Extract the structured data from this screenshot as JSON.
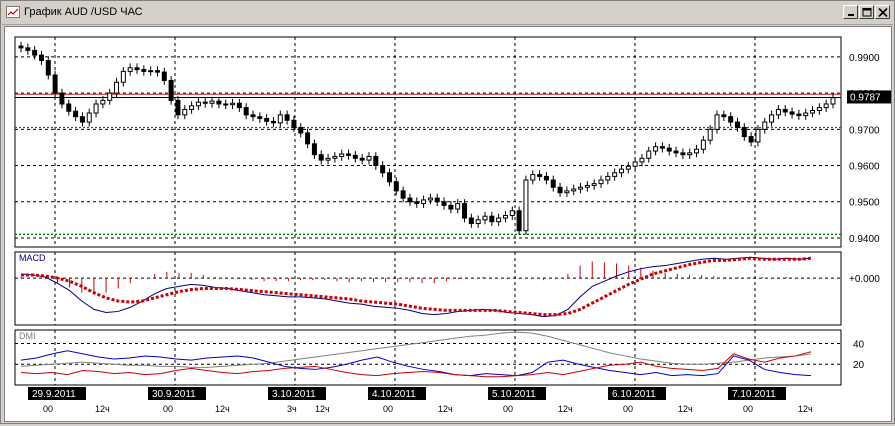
{
  "window": {
    "title": "График AUD /USD  ЧАС"
  },
  "colors": {
    "candle": "#000000",
    "resistance_line": "#c02020",
    "support_line": "#008000",
    "macd_line": "#00007f",
    "signal_line": "#cc0000",
    "histogram": "#cc0000",
    "dmi_adx": "#808080",
    "dmi_plus": "#0000cc",
    "dmi_minus": "#cc0000",
    "grid": "#000000"
  },
  "chart_data": [
    {
      "type": "candlestick",
      "panel": "price",
      "title": "",
      "price_axis": {
        "ticks": [
          "0.9900",
          "0.9800",
          "0.9700",
          "0.9600",
          "0.9500",
          "0.9400"
        ],
        "range": [
          0.9375,
          0.9955
        ]
      },
      "current_price": "0.9787",
      "levels": [
        {
          "value": 0.9797,
          "style": "solid",
          "color_key": "resistance_line"
        },
        {
          "value": 0.9788,
          "style": "solid",
          "color_key": "candle"
        },
        {
          "value": 0.9705,
          "style": "dotted",
          "color_key": "support_line"
        },
        {
          "value": 0.941,
          "style": "dotted",
          "color_key": "support_line"
        }
      ],
      "series": [
        {
          "close": [
            0.9925,
            0.9918,
            0.9905,
            0.989,
            0.985,
            0.98,
            0.977,
            0.975,
            0.9735,
            0.972,
            0.9745,
            0.977,
            0.978,
            0.98,
            0.983,
            0.986,
            0.987,
            0.9865,
            0.986,
            0.9862,
            0.9858,
            0.9835,
            0.978,
            0.974,
            0.9755,
            0.9765,
            0.9775,
            0.9772,
            0.9778,
            0.977,
            0.9768,
            0.9772,
            0.976,
            0.974,
            0.9735,
            0.973,
            0.9722,
            0.9718,
            0.974,
            0.9725,
            0.9705,
            0.969,
            0.966,
            0.963,
            0.9615,
            0.962,
            0.9625,
            0.9632,
            0.9628,
            0.962,
            0.9615,
            0.9625,
            0.96,
            0.958,
            0.9555,
            0.953,
            0.951,
            0.95,
            0.9495,
            0.9505,
            0.951,
            0.95,
            0.949,
            0.948,
            0.9495,
            0.9455,
            0.944,
            0.945,
            0.946,
            0.9445,
            0.9455,
            0.9462,
            0.9475,
            0.942,
            0.956,
            0.9575,
            0.957,
            0.956,
            0.954,
            0.9525,
            0.953,
            0.9535,
            0.954,
            0.9545,
            0.955,
            0.956,
            0.957,
            0.958,
            0.959,
            0.9598,
            0.961,
            0.962,
            0.964,
            0.9652,
            0.9648,
            0.964,
            0.9635,
            0.963,
            0.9635,
            0.9645,
            0.967,
            0.97,
            0.974,
            0.9735,
            0.972,
            0.9705,
            0.968,
            0.9665,
            0.97,
            0.972,
            0.974,
            0.9755,
            0.9748,
            0.9742,
            0.9738,
            0.9745,
            0.9752,
            0.976,
            0.977,
            0.9787
          ]
        }
      ],
      "x_labels": [
        {
          "date": "29.9.2011",
          "ticks": [
            "00",
            "12ч"
          ]
        },
        {
          "date": "30.9.2011",
          "ticks": [
            "00",
            "12ч"
          ]
        },
        {
          "date": "3.10.2011",
          "ticks": [
            "3ч",
            "12ч"
          ]
        },
        {
          "date": "4.10.2011",
          "ticks": [
            "00",
            "12ч"
          ]
        },
        {
          "date": "5.10.2011",
          "ticks": [
            "00",
            "12ч"
          ]
        },
        {
          "date": "6.10.2011",
          "ticks": [
            "00",
            "12ч"
          ]
        },
        {
          "date": "7.10.2011",
          "ticks": [
            "00",
            "12ч"
          ]
        }
      ],
      "grid": true
    },
    {
      "type": "line",
      "panel": "macd",
      "title": "MACD",
      "axis_label": "+0.000",
      "zero_level": 0,
      "range": [
        -0.0045,
        0.0025
      ],
      "series": [
        {
          "name": "macd",
          "values": [
            0.0004,
            0.0003,
            0.0001,
            -0.0005,
            -0.0012,
            -0.0022,
            -0.003,
            -0.0033,
            -0.0032,
            -0.0028,
            -0.0022,
            -0.0015,
            -0.001,
            -0.0008,
            -0.0006,
            -0.0007,
            -0.0009,
            -0.001,
            -0.0012,
            -0.0014,
            -0.0016,
            -0.0017,
            -0.0018,
            -0.0018,
            -0.0019,
            -0.002,
            -0.0022,
            -0.0024,
            -0.0025,
            -0.0027,
            -0.0028,
            -0.0029,
            -0.0031,
            -0.0034,
            -0.0035,
            -0.0034,
            -0.0032,
            -0.0031,
            -0.003,
            -0.0031,
            -0.0033,
            -0.0034,
            -0.0035,
            -0.0037,
            -0.0036,
            -0.003,
            -0.0018,
            -0.0008,
            -0.0003,
            0.0002,
            0.0006,
            0.0009,
            0.0011,
            0.0012,
            0.0014,
            0.0016,
            0.0018,
            0.0019,
            0.0018,
            0.0019,
            0.002,
            0.0019,
            0.0018,
            0.0019,
            0.0018,
            0.0019
          ]
        },
        {
          "name": "signal",
          "values": [
            0.0003,
            0.0003,
            0.0002,
            0.0,
            -0.0003,
            -0.0008,
            -0.0014,
            -0.0019,
            -0.0022,
            -0.0023,
            -0.0022,
            -0.0019,
            -0.0016,
            -0.0013,
            -0.0011,
            -0.001,
            -0.001,
            -0.001,
            -0.0011,
            -0.0012,
            -0.0013,
            -0.0014,
            -0.0015,
            -0.0016,
            -0.0017,
            -0.0018,
            -0.0019,
            -0.002,
            -0.0022,
            -0.0023,
            -0.0024,
            -0.0025,
            -0.0027,
            -0.0029,
            -0.003,
            -0.0031,
            -0.0031,
            -0.0031,
            -0.0031,
            -0.0031,
            -0.0032,
            -0.0033,
            -0.0034,
            -0.0035,
            -0.0035,
            -0.0034,
            -0.003,
            -0.0024,
            -0.0018,
            -0.0012,
            -0.0006,
            -0.0001,
            0.0004,
            0.0007,
            0.001,
            0.0013,
            0.0015,
            0.0017,
            0.0017,
            0.0018,
            0.0019,
            0.0018,
            0.0018,
            0.0018,
            0.0018,
            0.0019
          ]
        }
      ],
      "histogram": [
        0.0001,
        0.0,
        -0.0001,
        -0.0005,
        -0.0009,
        -0.0014,
        -0.0016,
        -0.0014,
        -0.001,
        -0.0005,
        0.0,
        0.0004,
        0.0006,
        0.0005,
        0.0005,
        0.0003,
        0.0001,
        0.0,
        -0.0001,
        -0.0002,
        -0.0003,
        -0.0003,
        -0.0003,
        -0.0002,
        -0.0002,
        -0.0002,
        -0.0003,
        -0.0004,
        -0.0003,
        -0.0004,
        -0.0004,
        -0.0004,
        -0.0004,
        -0.0005,
        -0.0005,
        -0.0003,
        -0.0001,
        0.0,
        0.0001,
        0.0,
        -0.0001,
        -0.0001,
        -0.0001,
        -0.0002,
        -0.0001,
        0.0004,
        0.0012,
        0.0016,
        0.0015,
        0.0014,
        0.0012,
        0.001,
        0.0007,
        0.0005,
        0.0004,
        0.0003,
        0.0003,
        0.0002,
        0.0001,
        0.0001,
        0.0001,
        0.0001,
        0.0,
        0.0001,
        0.0,
        0.0
      ]
    },
    {
      "type": "line",
      "panel": "dmi",
      "title": "DMI",
      "y_ticks": [
        "40",
        "20"
      ],
      "range": [
        0,
        53
      ],
      "series": [
        {
          "name": "adx",
          "values": [
            18,
            19,
            20,
            21,
            22,
            21,
            20,
            19,
            19,
            18,
            18,
            17,
            17,
            18,
            19,
            20,
            21,
            23,
            25,
            27,
            29,
            31,
            33,
            35,
            37,
            39,
            41,
            43,
            45,
            47,
            48,
            50,
            51,
            50,
            47,
            43,
            39,
            35,
            31,
            28,
            25,
            23,
            21,
            20,
            20,
            21,
            22,
            24,
            26,
            27,
            28,
            30
          ]
        },
        {
          "name": "+di",
          "values": [
            24,
            26,
            30,
            33,
            30,
            27,
            25,
            26,
            28,
            27,
            25,
            24,
            26,
            27,
            28,
            26,
            22,
            18,
            16,
            15,
            17,
            20,
            24,
            27,
            22,
            18,
            15,
            13,
            10,
            9,
            11,
            10,
            9,
            12,
            22,
            24,
            20,
            17,
            14,
            12,
            10,
            12,
            9,
            10,
            9,
            11,
            28,
            24,
            15,
            12,
            10,
            9
          ]
        },
        {
          "name": "-di",
          "values": [
            12,
            11,
            12,
            10,
            14,
            13,
            11,
            12,
            10,
            11,
            14,
            16,
            14,
            12,
            11,
            13,
            14,
            16,
            17,
            18,
            15,
            12,
            10,
            9,
            11,
            12,
            13,
            12,
            10,
            9,
            8,
            8,
            9,
            10,
            12,
            10,
            13,
            16,
            19,
            20,
            22,
            18,
            16,
            15,
            14,
            16,
            30,
            25,
            22,
            26,
            28,
            32
          ]
        }
      ]
    }
  ]
}
